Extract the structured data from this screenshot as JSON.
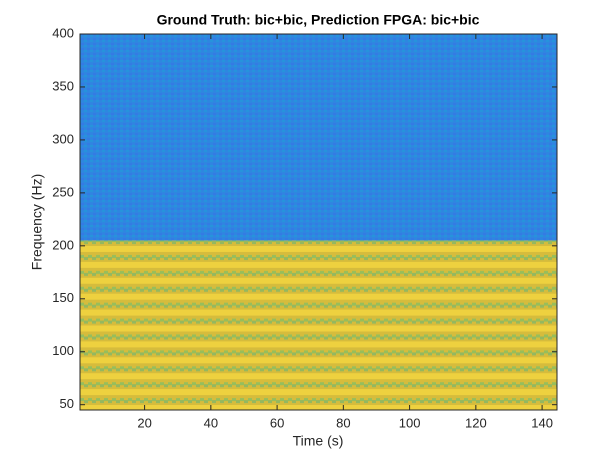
{
  "chart_data": {
    "type": "spectrogram",
    "title": "Ground Truth: bic+bic, Prediction FPGA: bic+bic",
    "xlabel": "Time (s)",
    "ylabel": "Frequency (Hz)",
    "xlim": [
      0.5,
      144.5
    ],
    "ylim": [
      45,
      400
    ],
    "xticks": [
      20,
      40,
      60,
      80,
      100,
      120,
      140
    ],
    "yticks": [
      50,
      100,
      150,
      200,
      250,
      300,
      350,
      400
    ],
    "regions": [
      {
        "y": [
          45,
          205
        ],
        "color": "#d6bc3c"
      },
      {
        "y": [
          205,
          400
        ],
        "color": "#2f86e0"
      }
    ]
  }
}
